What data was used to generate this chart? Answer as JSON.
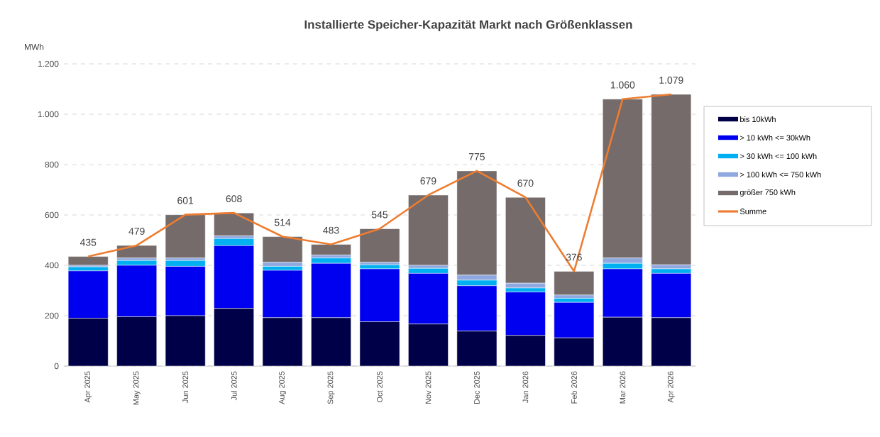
{
  "chart_data": {
    "type": "bar",
    "title": "Installierte Speicher-Kapazität Markt nach Größenklassen",
    "ylabel": "MWh",
    "categories": [
      "Apr 2025",
      "May 2025",
      "Jun 2025",
      "Jul 2025",
      "Aug 2025",
      "Sep 2025",
      "Oct 2025",
      "Nov 2025",
      "Dec 2025",
      "Jan 2026",
      "Feb 2026",
      "Mar 2026",
      "Apr 2026"
    ],
    "stacked": true,
    "series": [
      {
        "name": "bis 10kWh",
        "color": "#000048",
        "values": [
          190,
          196,
          200,
          229,
          192,
          192,
          176,
          167,
          139,
          122,
          112,
          194,
          192
        ]
      },
      {
        "name": "> 10 kWh <= 30kWh",
        "color": "#0000f0",
        "values": [
          188,
          204,
          196,
          249,
          188,
          216,
          210,
          201,
          180,
          172,
          141,
          192,
          176
        ]
      },
      {
        "name": "> 30 kWh <= 100 kWh",
        "color": "#00b0f0",
        "values": [
          16,
          19,
          23,
          28,
          16,
          21,
          16,
          20,
          22,
          16,
          16,
          22,
          18
        ]
      },
      {
        "name": "> 100 kWh <= 750 kWh",
        "color": "#8fa8e0",
        "values": [
          6,
          10,
          10,
          11,
          16,
          12,
          10,
          12,
          20,
          19,
          13,
          21,
          16
        ]
      },
      {
        "name": "größer 750 kWh",
        "color": "#756b6b",
        "values": [
          35,
          50,
          172,
          91,
          102,
          42,
          133,
          279,
          414,
          341,
          94,
          631,
          677
        ]
      },
      {
        "name": "Summe",
        "type": "line",
        "color": "#ed7d31",
        "values": [
          435,
          479,
          601,
          608,
          514,
          483,
          545,
          679,
          775,
          670,
          376,
          1060,
          1079
        ],
        "value_labels": [
          "435",
          "479",
          "601",
          "608",
          "514",
          "483",
          "545",
          "679",
          "775",
          "670",
          "376",
          "1.060",
          "1.079"
        ]
      }
    ],
    "ylim": [
      0,
      1200
    ],
    "yticks": [
      0,
      200,
      400,
      600,
      {
        "value": 800,
        "label": "800"
      },
      {
        "value": 1000,
        "label": "1.000"
      },
      {
        "value": 1200,
        "label": "1.200"
      }
    ],
    "grid": "y",
    "legend": "right"
  }
}
